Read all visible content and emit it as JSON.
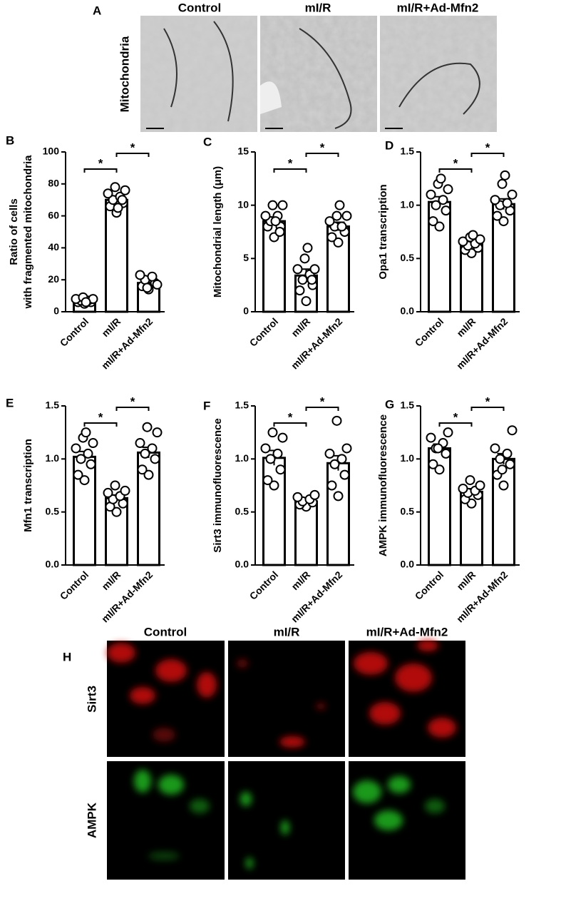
{
  "panel_a": {
    "label": "A",
    "columns": [
      "Control",
      "mI/R",
      "mI/R+Ad-Mfn2"
    ],
    "row_label": "Mitochondria"
  },
  "chart_data": [
    {
      "type": "bar",
      "panel_label": "B",
      "ylabel": [
        "Ratio of cells",
        "with fragmented mitochondria"
      ],
      "categories": [
        "Control",
        "mI/R",
        "mI/R+Ad-Mfn2"
      ],
      "values": [
        7,
        70,
        18
      ],
      "errors": [
        0.8,
        2.5,
        1.5
      ],
      "points": [
        [
          5,
          6,
          6,
          7,
          7,
          8,
          8,
          9,
          6
        ],
        [
          62,
          66,
          68,
          70,
          72,
          74,
          76,
          78,
          65,
          70
        ],
        [
          14,
          16,
          18,
          20,
          22,
          23,
          17,
          15
        ]
      ],
      "ylim": [
        0,
        100
      ],
      "yticks": [
        0,
        20,
        40,
        60,
        80,
        100
      ],
      "significance": [
        {
          "pair": [
            "Control",
            "mI/R"
          ],
          "label": "*"
        },
        {
          "pair": [
            "mI/R",
            "mI/R+Ad-Mfn2"
          ],
          "label": "*"
        }
      ]
    },
    {
      "type": "bar",
      "panel_label": "C",
      "ylabel": "Mitochondrial length (μm)",
      "categories": [
        "Control",
        "mI/R",
        "mI/R+Ad-Mfn2"
      ],
      "values": [
        8.5,
        3.4,
        8.0
      ],
      "errors": [
        0.4,
        0.6,
        0.4
      ],
      "points": [
        [
          7,
          8,
          8,
          8.5,
          9,
          9,
          10,
          10,
          8.5,
          7.5
        ],
        [
          1,
          2,
          2.5,
          3,
          3.5,
          4,
          4,
          5,
          6,
          3
        ],
        [
          6.5,
          7,
          7.5,
          8,
          8,
          8.5,
          9,
          9,
          10
        ]
      ],
      "ylim": [
        0,
        15
      ],
      "yticks": [
        0,
        5,
        10,
        15
      ],
      "significance": [
        {
          "pair": [
            "Control",
            "mI/R"
          ],
          "label": "*"
        },
        {
          "pair": [
            "mI/R",
            "mI/R+Ad-Mfn2"
          ],
          "label": "*"
        }
      ]
    },
    {
      "type": "bar",
      "panel_label": "D",
      "ylabel": "Opa1 transcription",
      "categories": [
        "Control",
        "mI/R",
        "mI/R+Ad-Mfn2"
      ],
      "values": [
        1.03,
        0.64,
        1.01
      ],
      "errors": [
        0.05,
        0.02,
        0.05
      ],
      "points": [
        [
          0.8,
          0.85,
          0.95,
          1.0,
          1.05,
          1.1,
          1.15,
          1.2,
          1.25
        ],
        [
          0.55,
          0.58,
          0.6,
          0.62,
          0.64,
          0.66,
          0.68,
          0.7,
          0.72
        ],
        [
          0.85,
          0.9,
          0.95,
          1.0,
          1.02,
          1.05,
          1.1,
          1.2,
          1.28
        ]
      ],
      "ylim": [
        0,
        1.5
      ],
      "yticks": [
        {
          "value": 0,
          "label": "0.0"
        },
        {
          "value": 0.5,
          "label": "0.5"
        },
        {
          "value": 1,
          "label": "1.0"
        },
        {
          "value": 1.5,
          "label": "1.5"
        }
      ],
      "significance": [
        {
          "pair": [
            "Control",
            "mI/R"
          ],
          "label": "*"
        },
        {
          "pair": [
            "mI/R",
            "mI/R+Ad-Mfn2"
          ],
          "label": "*"
        }
      ]
    },
    {
      "type": "bar",
      "panel_label": "E",
      "ylabel": "Mfn1 transcription",
      "categories": [
        "Control",
        "mI/R",
        "mI/R+Ad-Mfn2"
      ],
      "values": [
        1.02,
        0.63,
        1.06
      ],
      "errors": [
        0.05,
        0.03,
        0.05
      ],
      "points": [
        [
          0.8,
          0.85,
          0.95,
          1.0,
          1.05,
          1.1,
          1.15,
          1.2,
          1.25
        ],
        [
          0.5,
          0.55,
          0.58,
          0.62,
          0.65,
          0.68,
          0.7,
          0.75
        ],
        [
          0.85,
          0.9,
          1.0,
          1.05,
          1.1,
          1.15,
          1.25,
          1.3
        ]
      ],
      "ylim": [
        0,
        1.5
      ],
      "yticks": [
        {
          "value": 0,
          "label": "0.0"
        },
        {
          "value": 0.5,
          "label": "0.5"
        },
        {
          "value": 1,
          "label": "1.0"
        },
        {
          "value": 1.5,
          "label": "1.5"
        }
      ],
      "significance": [
        {
          "pair": [
            "Control",
            "mI/R"
          ],
          "label": "*"
        },
        {
          "pair": [
            "mI/R",
            "mI/R+Ad-Mfn2"
          ],
          "label": "*"
        }
      ]
    },
    {
      "type": "bar",
      "panel_label": "F",
      "ylabel": "Sirt3 immunofluorescence",
      "categories": [
        "Control",
        "mI/R",
        "mI/R+Ad-Mfn2"
      ],
      "values": [
        1.01,
        0.6,
        0.96
      ],
      "errors": [
        0.07,
        0.02,
        0.07
      ],
      "points": [
        [
          0.75,
          0.8,
          0.9,
          1.0,
          1.05,
          1.1,
          1.2,
          1.25
        ],
        [
          0.55,
          0.57,
          0.59,
          0.6,
          0.62,
          0.64,
          0.66
        ],
        [
          0.65,
          0.75,
          0.85,
          0.95,
          1.0,
          1.05,
          1.1,
          1.36
        ]
      ],
      "ylim": [
        0,
        1.5
      ],
      "yticks": [
        {
          "value": 0,
          "label": "0.0"
        },
        {
          "value": 0.5,
          "label": "0.5"
        },
        {
          "value": 1,
          "label": "1.0"
        },
        {
          "value": 1.5,
          "label": "1.5"
        }
      ],
      "significance": [
        {
          "pair": [
            "Control",
            "mI/R"
          ],
          "label": "*"
        },
        {
          "pair": [
            "mI/R",
            "mI/R+Ad-Mfn2"
          ],
          "label": "*"
        }
      ]
    },
    {
      "type": "bar",
      "panel_label": "G",
      "ylabel": "AMPK immunofluorescence",
      "categories": [
        "Control",
        "mI/R",
        "mI/R+Ad-Mfn2"
      ],
      "values": [
        1.1,
        0.69,
        1.0
      ],
      "errors": [
        0.04,
        0.03,
        0.05
      ],
      "points": [
        [
          0.9,
          0.95,
          1.05,
          1.1,
          1.15,
          1.2,
          1.25,
          1.1
        ],
        [
          0.58,
          0.62,
          0.66,
          0.68,
          0.7,
          0.72,
          0.75,
          0.8
        ],
        [
          0.75,
          0.85,
          0.95,
          1.0,
          1.05,
          1.1,
          1.27,
          0.9
        ]
      ],
      "ylim": [
        0,
        1.5
      ],
      "yticks": [
        {
          "value": 0,
          "label": "0.0"
        },
        {
          "value": 0.5,
          "label": "0.5"
        },
        {
          "value": 1,
          "label": "1.0"
        },
        {
          "value": 1.5,
          "label": "1.5"
        }
      ],
      "significance": [
        {
          "pair": [
            "Control",
            "mI/R"
          ],
          "label": "*"
        },
        {
          "pair": [
            "mI/R",
            "mI/R+Ad-Mfn2"
          ],
          "label": "*"
        }
      ]
    }
  ],
  "panel_h": {
    "label": "H",
    "columns": [
      "Control",
      "mI/R",
      "mI/R+Ad-Mfn2"
    ],
    "rows": [
      "Sirt3",
      "AMPK"
    ]
  }
}
